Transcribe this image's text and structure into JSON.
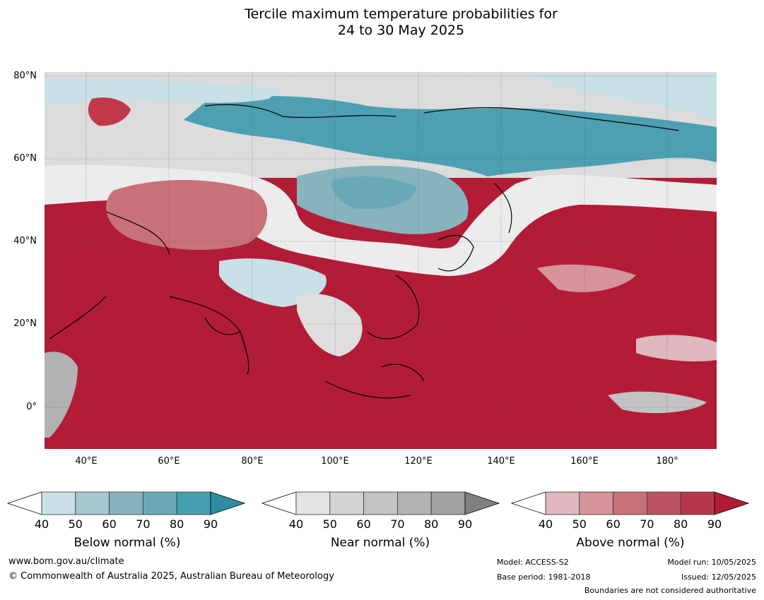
{
  "title_line1": "Tercile maximum temperature probabilities for",
  "title_line2": "24 to 30 May 2025",
  "lat_labels": [
    "80°N",
    "60°N",
    "40°N",
    "20°N",
    "0°"
  ],
  "lon_labels": [
    "40°E",
    "60°E",
    "80°E",
    "100°E",
    "120°E",
    "140°E",
    "160°E",
    "180°"
  ],
  "colorbars": [
    {
      "label": "Below normal (%)",
      "ticks": [
        "40",
        "50",
        "60",
        "70",
        "80",
        "90"
      ],
      "colors": [
        "#ffffff",
        "#c9e0e6",
        "#a6c7ce",
        "#87b3bd",
        "#6aaab8",
        "#469fb1",
        "#2e8da0"
      ]
    },
    {
      "label": "Near normal (%)",
      "ticks": [
        "40",
        "50",
        "60",
        "70",
        "80",
        "90"
      ],
      "colors": [
        "#ffffff",
        "#e4e4e4",
        "#d3d3d3",
        "#c3c3c3",
        "#b2b2b2",
        "#a1a1a1",
        "#808080"
      ]
    },
    {
      "label": "Above normal (%)",
      "ticks": [
        "40",
        "50",
        "60",
        "70",
        "80",
        "90"
      ],
      "colors": [
        "#ffffff",
        "#e0b8bf",
        "#d49499",
        "#c87179",
        "#bd5462",
        "#b8374b",
        "#b01c36"
      ]
    }
  ],
  "footer": {
    "website": "www.bom.gov.au/climate",
    "copyright": "© Commonwealth of Australia 2025, Australian Bureau of Meteorology",
    "model": "Model: ACCESS-S2",
    "base_period": "Base period: 1981-2018",
    "model_run": "Model run: 10/05/2025",
    "issued": "Issued: 12/05/2025",
    "disclaimer": "Boundaries are not considered authoritative"
  }
}
